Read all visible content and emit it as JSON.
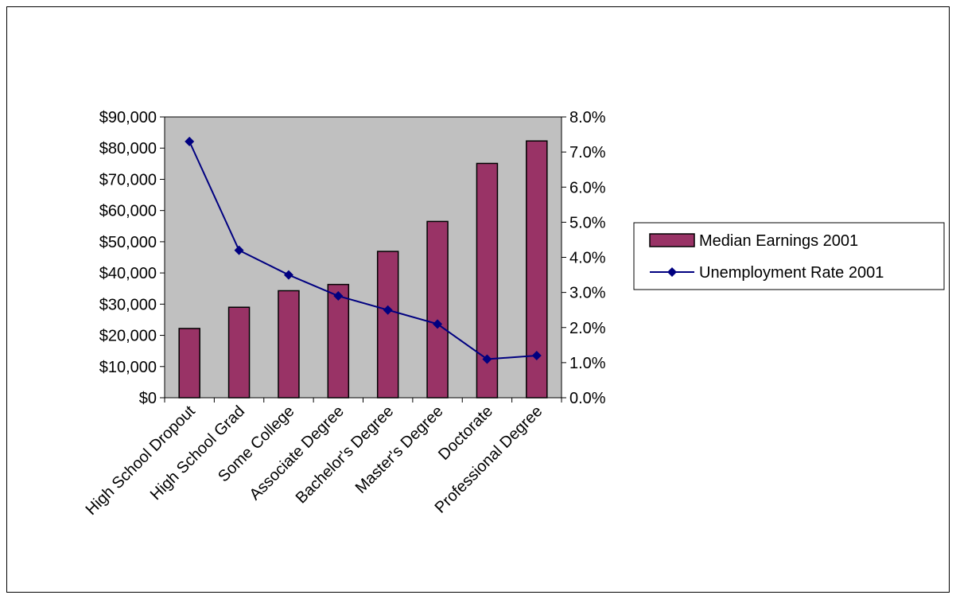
{
  "chart_data": {
    "type": "bar",
    "categories": [
      "High School Dropout",
      "High School Grad",
      "Some College",
      "Associate Degree",
      "Bachelor's Degree",
      "Master's Degree",
      "Doctorate",
      "Professional Degree"
    ],
    "series": [
      {
        "name": "Median Earnings 2001",
        "type": "bar",
        "axis": "left",
        "color": "#993366",
        "values": [
          22200,
          29000,
          34300,
          36300,
          46900,
          56500,
          75100,
          82300
        ]
      },
      {
        "name": "Unemployment Rate 2001",
        "type": "line",
        "axis": "right",
        "color": "#000080",
        "marker": "diamond",
        "values": [
          7.3,
          4.2,
          3.5,
          2.9,
          2.5,
          2.1,
          1.1,
          1.2
        ]
      }
    ],
    "y_left": {
      "ylim": [
        0,
        90000
      ],
      "ticks": [
        "$0",
        "$10,000",
        "$20,000",
        "$30,000",
        "$40,000",
        "$50,000",
        "$60,000",
        "$70,000",
        "$80,000",
        "$90,000"
      ]
    },
    "y_right": {
      "ylim": [
        0,
        8
      ],
      "ticks": [
        "0.0%",
        "1.0%",
        "2.0%",
        "3.0%",
        "4.0%",
        "5.0%",
        "6.0%",
        "7.0%",
        "8.0%"
      ]
    },
    "plot_background": "#c0c0c0",
    "grid": false,
    "legend_position": "right"
  }
}
